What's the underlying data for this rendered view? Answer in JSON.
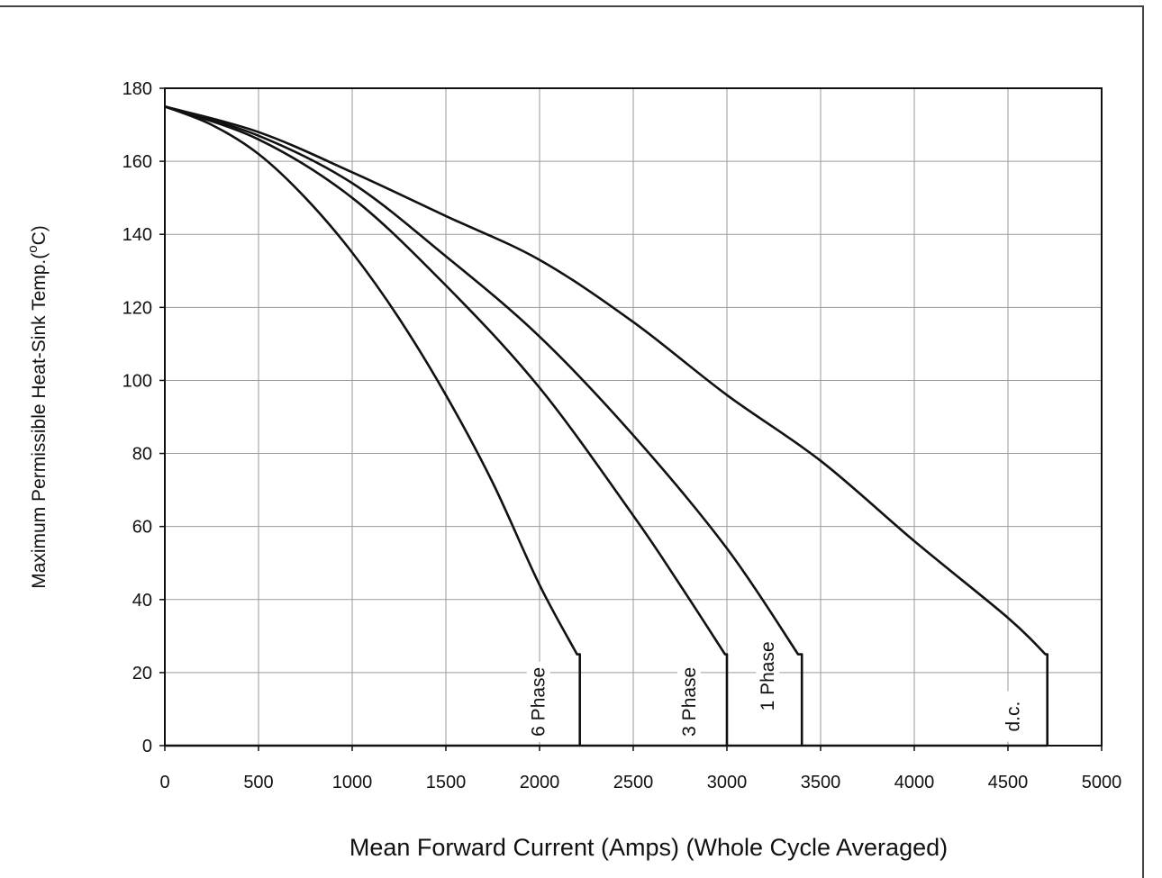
{
  "chart_data": {
    "type": "line",
    "title": "",
    "xlabel": "Mean Forward Current (Amps) (Whole Cycle Averaged)",
    "ylabel": {
      "main": "Maximum Permissible Heat-Sink Temp.(",
      "superscript": "o",
      "unit": "C)"
    },
    "xlim": [
      0,
      5000
    ],
    "ylim": [
      0,
      180
    ],
    "xticks": [
      "0",
      "500",
      "1000",
      "1500",
      "2000",
      "2500",
      "3000",
      "3500",
      "4000",
      "4500",
      "5000"
    ],
    "yticks": [
      "0",
      "20",
      "40",
      "60",
      "80",
      "100",
      "120",
      "140",
      "160",
      "180"
    ],
    "grid": true,
    "line_color": "#111111",
    "grid_color": "#9a9a9a",
    "series": [
      {
        "name": "6 Phase",
        "x": [
          0,
          250,
          500,
          750,
          1000,
          1250,
          1500,
          1750,
          2000,
          2200,
          2215,
          2215
        ],
        "y": [
          175,
          170,
          162,
          150,
          135,
          117,
          96,
          72,
          44,
          25,
          25,
          0
        ]
      },
      {
        "name": "3 Phase",
        "x": [
          0,
          500,
          1000,
          1500,
          2000,
          2500,
          2750,
          2990,
          3000,
          3000
        ],
        "y": [
          175,
          166,
          150,
          126,
          98,
          63,
          44,
          25,
          25,
          0
        ]
      },
      {
        "name": "1 Phase",
        "x": [
          0,
          500,
          1000,
          1500,
          2000,
          2500,
          3000,
          3380,
          3400,
          3400
        ],
        "y": [
          175,
          167,
          154,
          134,
          112,
          85,
          54,
          25,
          25,
          0
        ]
      },
      {
        "name": "d.c.",
        "x": [
          0,
          500,
          1000,
          1500,
          2000,
          2500,
          3000,
          3500,
          4000,
          4500,
          4700,
          4710,
          4710
        ],
        "y": [
          175,
          168,
          157,
          145,
          133,
          116,
          96,
          78,
          56,
          35,
          25,
          25,
          0
        ]
      }
    ],
    "baseline": {
      "x": [
        0,
        4710
      ],
      "y": [
        0,
        0
      ]
    }
  }
}
